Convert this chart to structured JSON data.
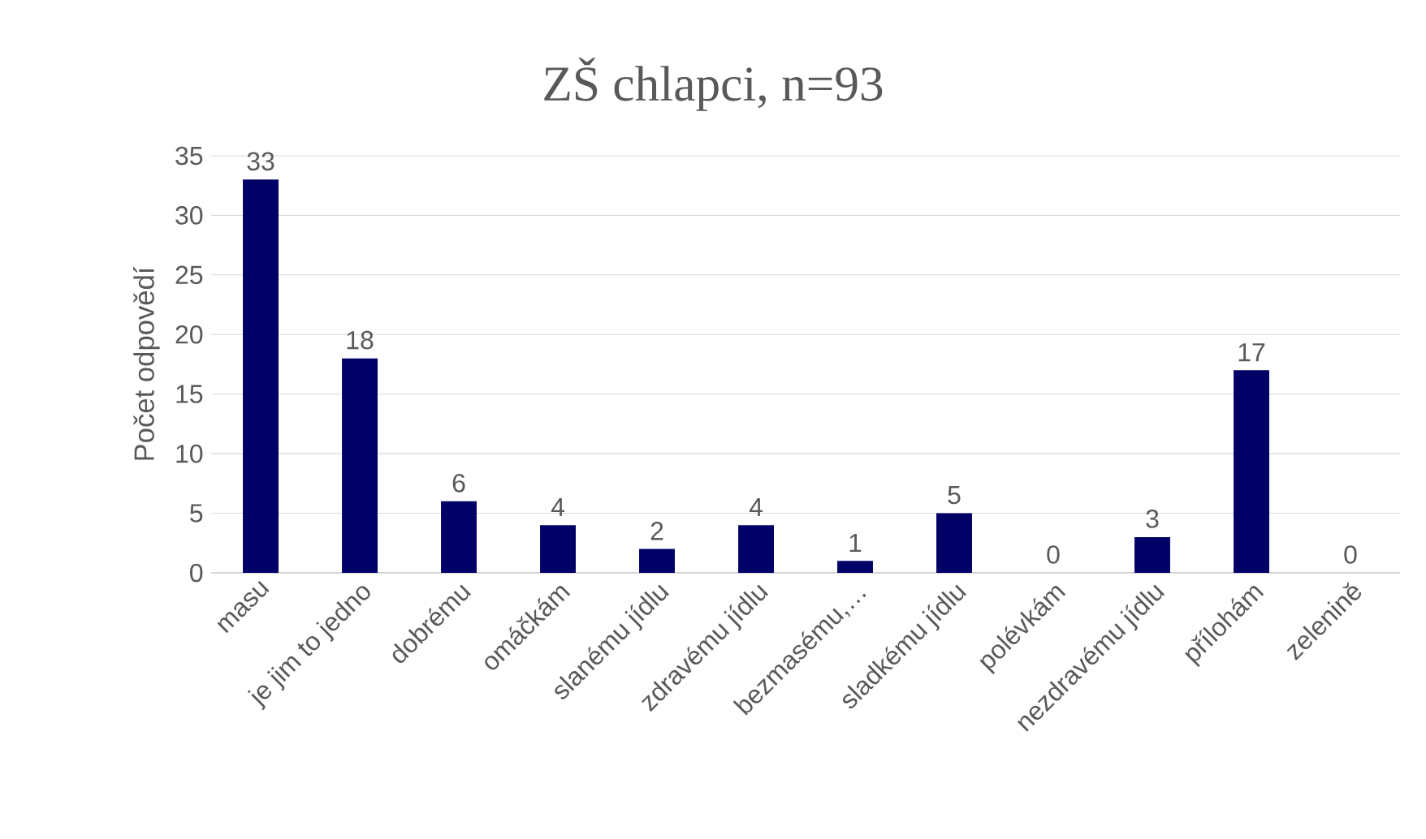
{
  "chart_data": {
    "type": "bar",
    "title": "ZŠ chlapci, n=93",
    "ylabel": "Počet odpovědí",
    "categories": [
      "masu",
      "je jim to jedno",
      "dobrému",
      "omáčkám",
      "slanému jídlu",
      "zdravému jídlu",
      "bezmasému,…",
      "sladkému jídlu",
      "polévkám",
      "nezdravému jídlu",
      "přílohám",
      "zelenině"
    ],
    "values": [
      33,
      18,
      6,
      4,
      2,
      4,
      1,
      5,
      0,
      3,
      17,
      0
    ],
    "color": "#000066",
    "ylim": [
      0,
      35
    ],
    "yticks": [
      0,
      5,
      10,
      15,
      20,
      25,
      30,
      35
    ],
    "grid": "y",
    "data_labels": true
  }
}
